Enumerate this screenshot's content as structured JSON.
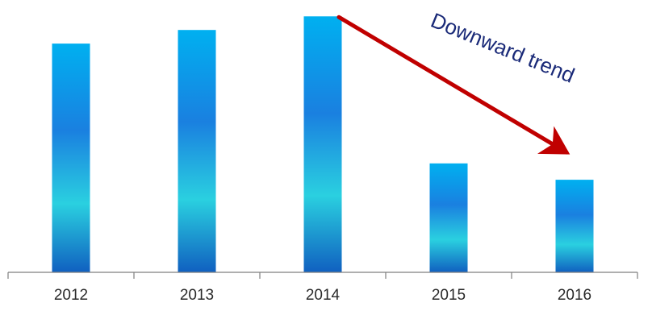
{
  "chart_data": {
    "type": "bar",
    "title": "",
    "xlabel": "",
    "ylabel": "",
    "categories": [
      "2012",
      "2013",
      "2014",
      "2015",
      "2016"
    ],
    "values": [
      84,
      89,
      94,
      40,
      34
    ],
    "ylim": [
      0,
      100
    ],
    "grid": false,
    "legend": "none",
    "annotation": {
      "text": "Downward trend",
      "from_category": "2014",
      "to_category": "2016",
      "arrow_color": "#c00000"
    },
    "colors": {
      "bar_top": "#00b0f0",
      "bar_mid_dark": "#1a80e0",
      "bar_mid_light": "#2ad0e0",
      "bar_bottom": "#1060c0",
      "axis": "#7f7f7f",
      "tick_text": "#2a2a2a",
      "annotation_text": "#1a2a78"
    }
  }
}
